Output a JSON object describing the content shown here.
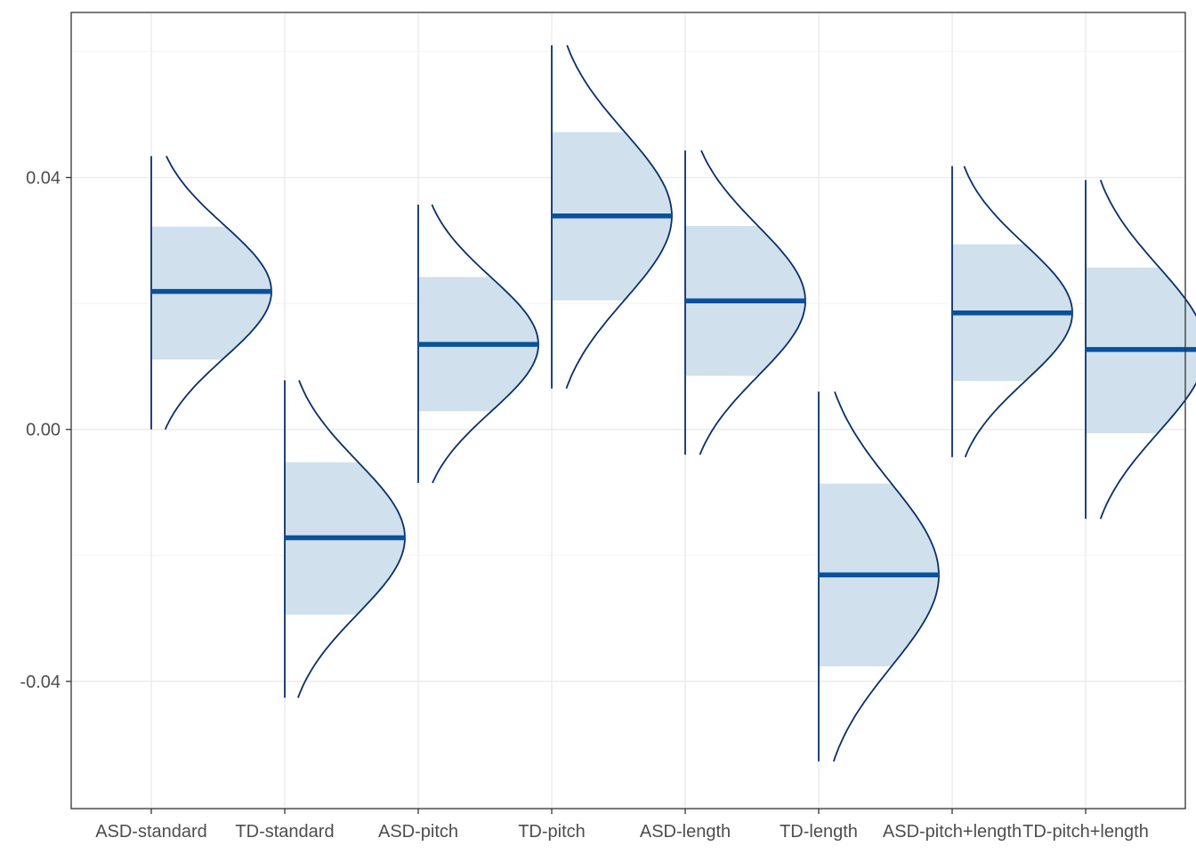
{
  "chart_data": {
    "type": "halfeye",
    "title": "",
    "xlabel": "",
    "ylabel": "",
    "categories": [
      "ASD-standard",
      "TD-standard",
      "ASD-pitch",
      "TD-pitch",
      "ASD-length",
      "TD-length",
      "ASD-pitch+length",
      "TD-pitch+length"
    ],
    "ylim": [
      -0.0602,
      0.0662
    ],
    "y_ticks": [
      -0.04,
      0.0,
      0.04
    ],
    "y_tick_labels": [
      "-0.04",
      "0.00",
      "0.04"
    ],
    "series": [
      {
        "category": "ASD-standard",
        "median": 0.0219,
        "interval": [
          0.0111,
          0.0322
        ],
        "range": [
          0.0,
          0.0434
        ]
      },
      {
        "category": "TD-standard",
        "median": -0.0172,
        "interval": [
          -0.0294,
          -0.0052
        ],
        "range": [
          -0.0426,
          0.0078
        ]
      },
      {
        "category": "ASD-pitch",
        "median": 0.0135,
        "interval": [
          0.0029,
          0.0242
        ],
        "range": [
          -0.0085,
          0.0357
        ]
      },
      {
        "category": "TD-pitch",
        "median": 0.0339,
        "interval": [
          0.0205,
          0.0472
        ],
        "range": [
          0.0065,
          0.061
        ]
      },
      {
        "category": "ASD-length",
        "median": 0.0204,
        "interval": [
          0.0085,
          0.0323
        ],
        "range": [
          -0.004,
          0.0443
        ]
      },
      {
        "category": "TD-length",
        "median": -0.0231,
        "interval": [
          -0.0376,
          -0.0086
        ],
        "range": [
          -0.0527,
          0.006
        ]
      },
      {
        "category": "ASD-pitch+length",
        "median": 0.0185,
        "interval": [
          0.0077,
          0.0294
        ],
        "range": [
          -0.0044,
          0.0418
        ]
      },
      {
        "category": "TD-pitch+length",
        "median": 0.0127,
        "interval": [
          -0.0006,
          0.0257
        ],
        "range": [
          -0.0142,
          0.0396
        ]
      }
    ],
    "colors": {
      "line": "#08306b",
      "median": "#08519c",
      "fill": "#d0e0ec",
      "grid": "#ebebeb",
      "border": "#333333",
      "text": "#4d4d4d"
    },
    "grid": true,
    "legend": "none"
  }
}
